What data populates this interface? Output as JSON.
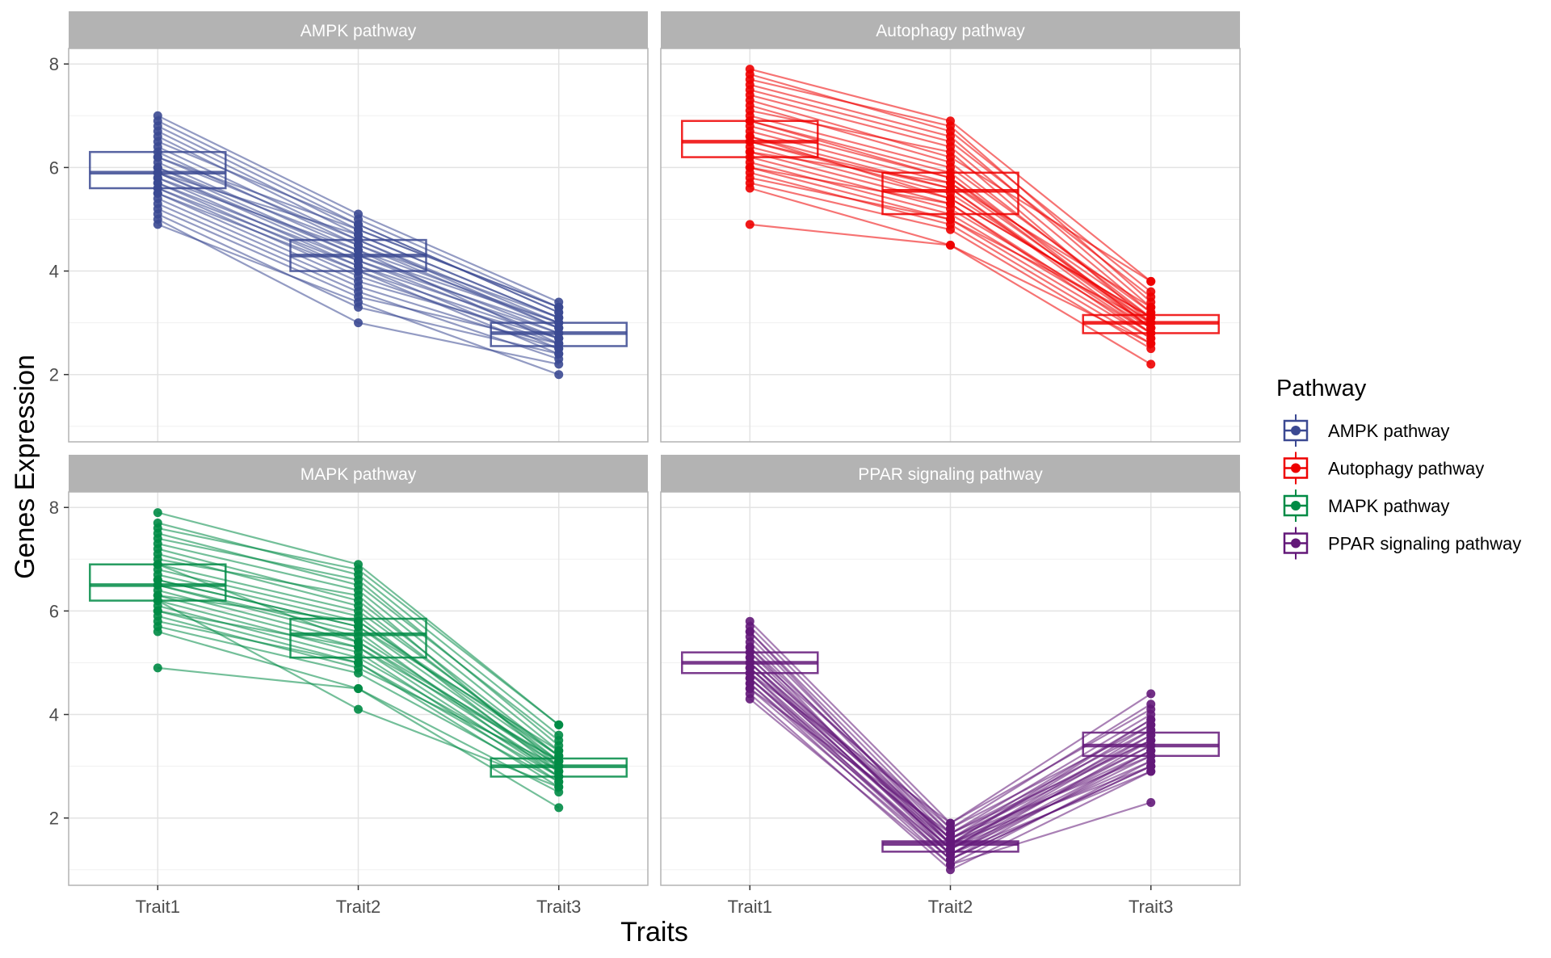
{
  "chart_data": {
    "type": "line",
    "xlabel": "Traits",
    "ylabel": "Genes Expression",
    "categories": [
      "Trait1",
      "Trait2",
      "Trait3"
    ],
    "ylim": [
      0.7,
      8.3
    ],
    "yticks": [
      2,
      4,
      6,
      8
    ],
    "grid": true,
    "legend": {
      "title": "Pathway",
      "placement": "right",
      "entries": [
        "AMPK pathway",
        "Autophagy pathway",
        "MAPK pathway",
        "PPAR signaling pathway"
      ]
    },
    "panels": [
      {
        "name": "AMPK pathway",
        "color": "#3B4992",
        "boxes": [
          {
            "q1": 5.6,
            "median": 5.9,
            "q3": 6.3
          },
          {
            "q1": 4.0,
            "median": 4.3,
            "q3": 4.6
          },
          {
            "q1": 2.55,
            "median": 2.8,
            "q3": 3.0
          }
        ],
        "series": [
          [
            7.0,
            5.1,
            3.4
          ],
          [
            6.9,
            5.0,
            3.3
          ],
          [
            6.8,
            4.9,
            3.2
          ],
          [
            6.7,
            4.8,
            3.3
          ],
          [
            6.6,
            4.7,
            3.1
          ],
          [
            6.5,
            4.9,
            3.2
          ],
          [
            6.4,
            4.6,
            3.0
          ],
          [
            6.3,
            4.5,
            3.1
          ],
          [
            6.2,
            4.6,
            2.9
          ],
          [
            6.1,
            4.4,
            3.0
          ],
          [
            6.0,
            4.3,
            2.8
          ],
          [
            6.0,
            4.5,
            2.9
          ],
          [
            5.9,
            4.2,
            2.7
          ],
          [
            5.9,
            4.3,
            3.0
          ],
          [
            5.8,
            4.1,
            2.8
          ],
          [
            5.8,
            4.4,
            2.6
          ],
          [
            5.7,
            4.0,
            2.7
          ],
          [
            5.7,
            4.2,
            2.9
          ],
          [
            5.6,
            3.9,
            2.6
          ],
          [
            5.6,
            4.1,
            2.5
          ],
          [
            5.5,
            3.8,
            2.7
          ],
          [
            5.5,
            4.0,
            2.4
          ],
          [
            5.4,
            3.7,
            2.5
          ],
          [
            5.3,
            3.6,
            2.3
          ],
          [
            5.2,
            3.5,
            2.6
          ],
          [
            5.1,
            3.3,
            2.4
          ],
          [
            5.0,
            3.0,
            2.2
          ],
          [
            4.9,
            3.4,
            2.0
          ],
          [
            6.2,
            4.8,
            3.3
          ],
          [
            5.9,
            4.7,
            3.1
          ]
        ]
      },
      {
        "name": "Autophagy pathway",
        "color": "#EE0000",
        "boxes": [
          {
            "q1": 6.2,
            "median": 6.5,
            "q3": 6.9
          },
          {
            "q1": 5.1,
            "median": 5.55,
            "q3": 5.9
          },
          {
            "q1": 2.8,
            "median": 3.0,
            "q3": 3.15
          }
        ],
        "series": [
          [
            7.9,
            6.9,
            3.8
          ],
          [
            7.8,
            6.7,
            3.6
          ],
          [
            7.7,
            6.8,
            3.4
          ],
          [
            7.6,
            6.6,
            3.3
          ],
          [
            7.4,
            6.4,
            3.2
          ],
          [
            7.3,
            6.2,
            3.8
          ],
          [
            7.2,
            6.1,
            3.1
          ],
          [
            7.1,
            6.3,
            3.0
          ],
          [
            7.0,
            6.0,
            3.2
          ],
          [
            6.9,
            5.9,
            2.9
          ],
          [
            6.8,
            5.8,
            3.1
          ],
          [
            6.7,
            5.7,
            3.0
          ],
          [
            6.6,
            5.6,
            2.8
          ],
          [
            6.5,
            5.5,
            3.0
          ],
          [
            6.5,
            5.6,
            2.9
          ],
          [
            6.4,
            5.4,
            3.1
          ],
          [
            6.3,
            5.3,
            2.7
          ],
          [
            6.2,
            5.2,
            2.9
          ],
          [
            6.1,
            5.1,
            2.8
          ],
          [
            6.0,
            5.0,
            3.0
          ],
          [
            5.9,
            4.9,
            2.6
          ],
          [
            5.8,
            5.0,
            2.7
          ],
          [
            5.7,
            4.8,
            2.5
          ],
          [
            5.6,
            4.5,
            2.6
          ],
          [
            4.9,
            4.5,
            2.2
          ],
          [
            6.3,
            5.7,
            3.3
          ],
          [
            6.6,
            5.4,
            3.1
          ],
          [
            6.9,
            5.8,
            2.9
          ],
          [
            7.5,
            6.5,
            3.5
          ],
          [
            6.0,
            5.3,
            2.8
          ]
        ]
      },
      {
        "name": "MAPK pathway",
        "color": "#008B45",
        "boxes": [
          {
            "q1": 6.2,
            "median": 6.5,
            "q3": 6.9
          },
          {
            "q1": 5.1,
            "median": 5.55,
            "q3": 5.85
          },
          {
            "q1": 2.8,
            "median": 3.0,
            "q3": 3.15
          }
        ],
        "series": [
          [
            7.9,
            6.9,
            3.8
          ],
          [
            7.7,
            6.7,
            3.6
          ],
          [
            7.6,
            6.8,
            3.8
          ],
          [
            7.4,
            6.6,
            3.4
          ],
          [
            7.3,
            6.4,
            3.3
          ],
          [
            7.2,
            6.2,
            3.2
          ],
          [
            7.1,
            6.1,
            3.1
          ],
          [
            7.0,
            6.3,
            3.0
          ],
          [
            6.9,
            6.0,
            3.2
          ],
          [
            6.8,
            5.9,
            2.9
          ],
          [
            6.7,
            5.8,
            3.1
          ],
          [
            6.6,
            5.7,
            3.0
          ],
          [
            6.5,
            5.6,
            2.8
          ],
          [
            6.5,
            5.5,
            3.0
          ],
          [
            6.4,
            5.4,
            2.9
          ],
          [
            6.3,
            5.3,
            3.1
          ],
          [
            6.2,
            5.2,
            2.7
          ],
          [
            6.1,
            5.1,
            2.9
          ],
          [
            6.0,
            5.0,
            2.8
          ],
          [
            5.9,
            4.9,
            3.0
          ],
          [
            5.8,
            5.0,
            2.6
          ],
          [
            5.7,
            4.8,
            2.7
          ],
          [
            5.6,
            4.5,
            2.5
          ],
          [
            4.9,
            4.5,
            2.2
          ],
          [
            6.2,
            4.1,
            2.6
          ],
          [
            6.6,
            5.7,
            3.3
          ],
          [
            6.9,
            5.4,
            3.1
          ],
          [
            7.5,
            6.5,
            3.5
          ],
          [
            6.0,
            5.3,
            2.8
          ],
          [
            6.3,
            5.8,
            3.2
          ]
        ]
      },
      {
        "name": "PPAR signaling pathway",
        "color": "#631879",
        "boxes": [
          {
            "q1": 4.8,
            "median": 5.0,
            "q3": 5.2
          },
          {
            "q1": 1.35,
            "median": 1.5,
            "q3": 1.55
          },
          {
            "q1": 3.2,
            "median": 3.4,
            "q3": 3.65
          }
        ],
        "series": [
          [
            5.8,
            1.9,
            4.4
          ],
          [
            5.7,
            1.8,
            4.2
          ],
          [
            5.6,
            1.7,
            4.0
          ],
          [
            5.5,
            1.6,
            3.9
          ],
          [
            5.4,
            1.5,
            3.8
          ],
          [
            5.3,
            1.7,
            3.7
          ],
          [
            5.2,
            1.4,
            3.6
          ],
          [
            5.1,
            1.6,
            3.5
          ],
          [
            5.1,
            1.5,
            3.4
          ],
          [
            5.0,
            1.3,
            3.5
          ],
          [
            5.0,
            1.5,
            3.3
          ],
          [
            4.9,
            1.4,
            3.4
          ],
          [
            4.9,
            1.6,
            3.2
          ],
          [
            4.8,
            1.2,
            3.3
          ],
          [
            4.8,
            1.4,
            3.1
          ],
          [
            4.7,
            1.3,
            3.2
          ],
          [
            4.7,
            1.5,
            3.0
          ],
          [
            4.6,
            1.1,
            3.1
          ],
          [
            4.6,
            1.3,
            2.9
          ],
          [
            4.5,
            1.2,
            3.0
          ],
          [
            4.4,
            1.0,
            2.9
          ],
          [
            4.3,
            1.1,
            2.3
          ],
          [
            5.0,
            1.6,
            3.6
          ],
          [
            5.2,
            1.8,
            3.8
          ],
          [
            4.9,
            1.4,
            3.7
          ],
          [
            4.5,
            1.7,
            3.5
          ],
          [
            5.3,
            1.3,
            3.3
          ],
          [
            4.8,
            1.9,
            4.1
          ],
          [
            5.6,
            1.5,
            3.9
          ],
          [
            4.7,
            1.2,
            3.0
          ]
        ]
      }
    ]
  }
}
